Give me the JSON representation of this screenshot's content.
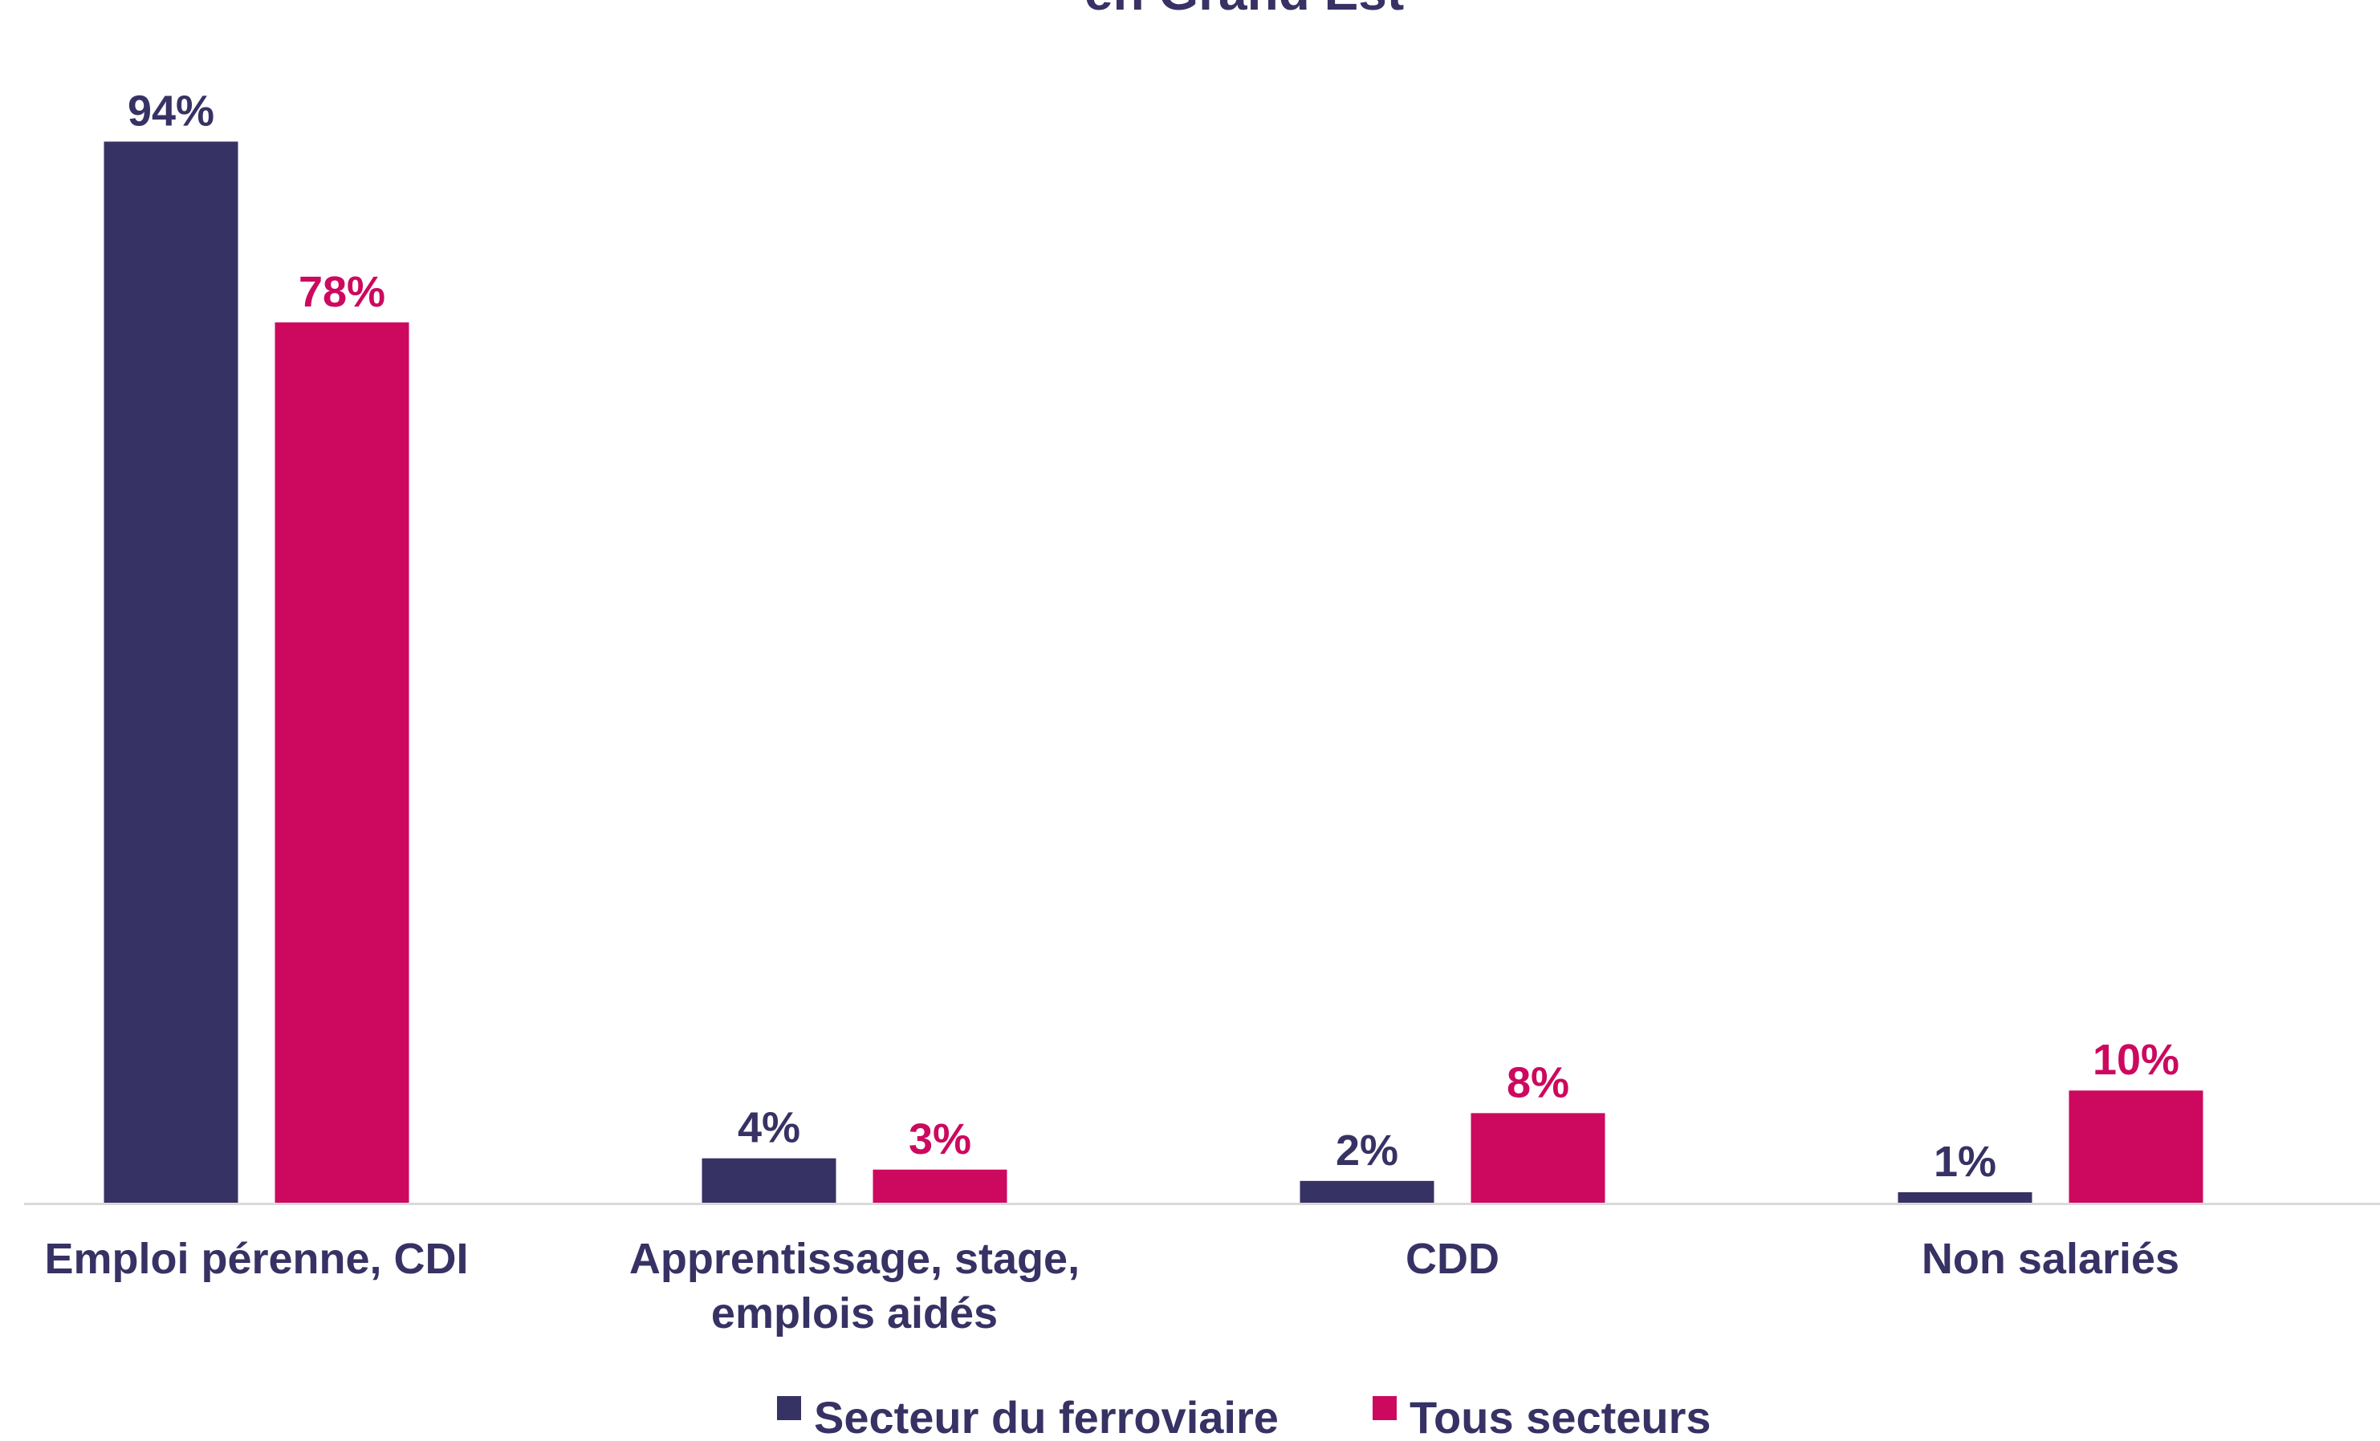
{
  "chart_data": {
    "type": "bar",
    "title": "en Grand Est",
    "categories": [
      [
        "Emploi pérenne, CDI"
      ],
      [
        "Apprentissage, stage,",
        "emplois aidés"
      ],
      [
        "CDD"
      ],
      [
        "Non salariés"
      ]
    ],
    "series": [
      {
        "name": "Secteur du ferroviaire",
        "color": "#373264",
        "values": [
          94,
          4,
          2,
          1
        ],
        "labels": [
          "94%",
          "4%",
          "2%",
          "1%"
        ]
      },
      {
        "name": "Tous secteurs",
        "color": "#CC095F",
        "values": [
          78,
          3,
          8,
          10
        ],
        "labels": [
          "78%",
          "3%",
          "8%",
          "10%"
        ]
      }
    ],
    "ylim": [
      0,
      100
    ],
    "grid": false,
    "legend_position": "bottom",
    "axis_color": "#D9D9D9",
    "text_color": "#373264"
  }
}
